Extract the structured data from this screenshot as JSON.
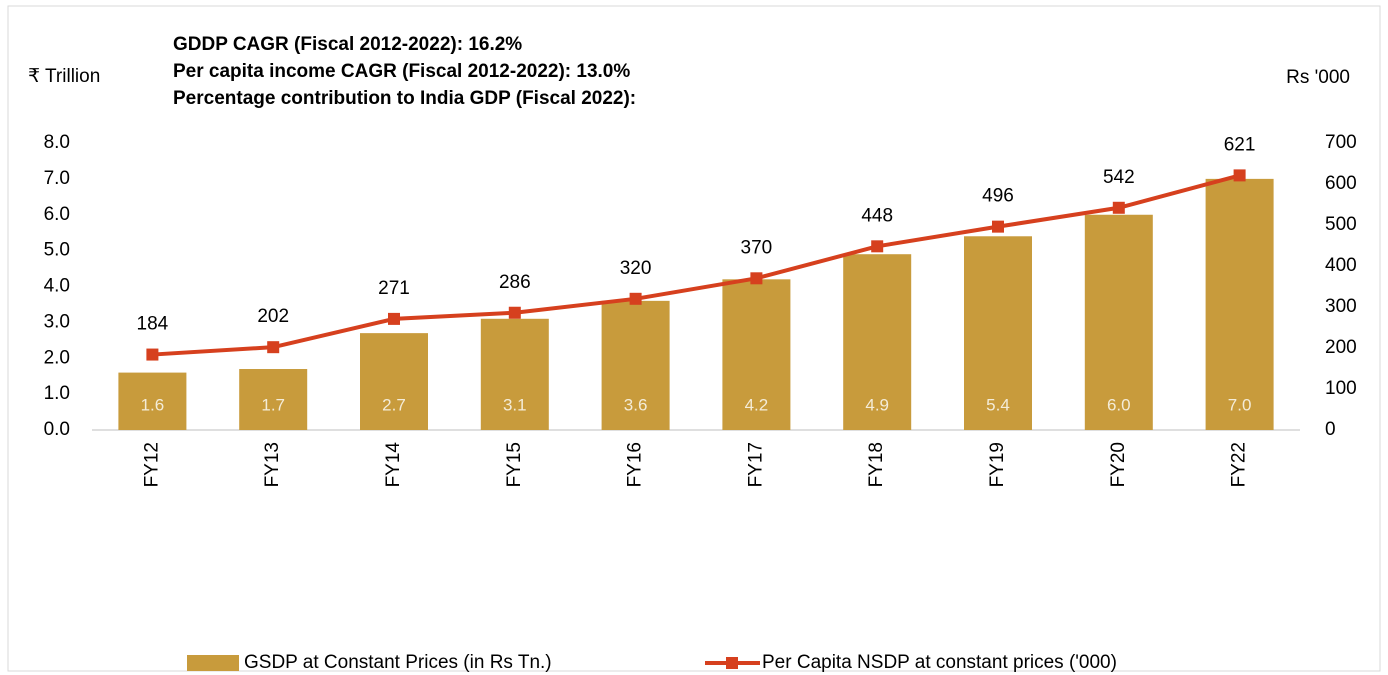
{
  "chart_data": {
    "type": "bar_line",
    "annotations": [
      "GDDP CAGR (Fiscal 2012-2022): 16.2%",
      "Per capita income CAGR (Fiscal 2012-2022): 13.0%",
      "Percentage contribution to India GDP (Fiscal 2022):"
    ],
    "y_label": "₹ Trillion",
    "y2_label": "Rs '000",
    "categories": [
      "FY12",
      "FY13",
      "FY14",
      "FY15",
      "FY16",
      "FY17",
      "FY18",
      "FY19",
      "FY20",
      "FY22"
    ],
    "series": [
      {
        "name": "GSDP at Constant Prices (in Rs Tn.)",
        "type": "bar",
        "color": "#c89b3c",
        "values": [
          1.6,
          1.7,
          2.7,
          3.1,
          3.6,
          4.2,
          4.9,
          5.4,
          6.0,
          7.0
        ],
        "value_labels": [
          "1.6",
          "1.7",
          "2.7",
          "3.1",
          "3.6",
          "4.2",
          "4.9",
          "5.4",
          "6.0",
          "7.0"
        ]
      },
      {
        "name": "Per Capita NSDP at constant prices ('000)",
        "type": "line",
        "axis": "y2",
        "color": "#d6401e",
        "values": [
          184,
          202,
          271,
          286,
          320,
          370,
          448,
          496,
          542,
          621
        ]
      }
    ],
    "ylim": [
      0,
      8
    ],
    "yticks": [
      {
        "value": 0,
        "label": "0.0"
      },
      {
        "value": 1,
        "label": "1.0"
      },
      {
        "value": 2,
        "label": "2.0"
      },
      {
        "value": 3,
        "label": "3.0"
      },
      {
        "value": 4,
        "label": "4.0"
      },
      {
        "value": 5,
        "label": "5.0"
      },
      {
        "value": 6,
        "label": "6.0"
      },
      {
        "value": 7,
        "label": "7.0"
      },
      {
        "value": 8,
        "label": "8.0"
      }
    ],
    "y2lim": [
      0,
      700
    ],
    "y2ticks": [
      0,
      100,
      200,
      300,
      400,
      500,
      600,
      700
    ],
    "grid": false,
    "legend": "bottom"
  }
}
